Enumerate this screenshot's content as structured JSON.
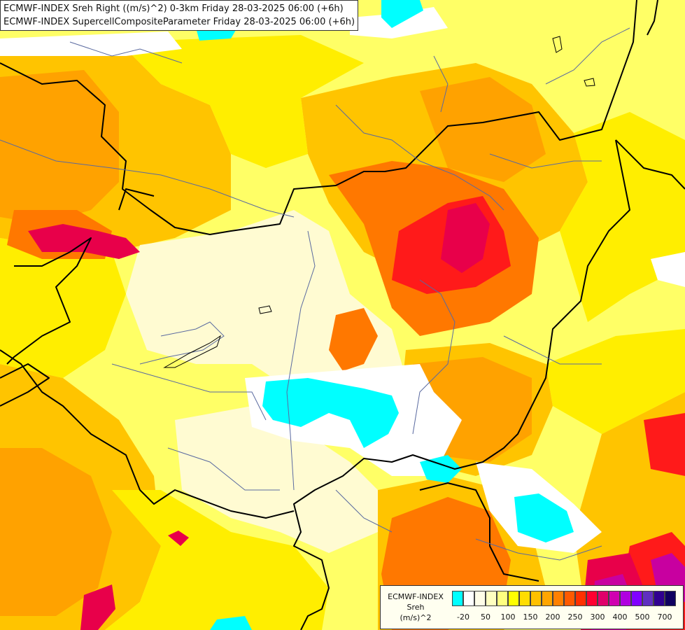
{
  "title": {
    "line1": "ECMWF-INDEX Sreh Right ((m/s)^2) 0-3km Friday 28-03-2025 06:00 (+6h)",
    "line2": "ECMWF-INDEX SupercellCompositeParameter Friday 28-03-2025 06:00 (+6h)"
  },
  "legend": {
    "name_line1": "ECMWF-INDEX",
    "name_line2": "Sreh",
    "name_line3": "(m/s)^2",
    "colors": [
      "#00ffff",
      "#ffffff",
      "#fffde8",
      "#ffffc0",
      "#ffff80",
      "#ffff00",
      "#ffdd00",
      "#ffc000",
      "#ffa500",
      "#ff8000",
      "#ff5a00",
      "#ff3000",
      "#ff0030",
      "#e0006a",
      "#d000b0",
      "#b000e0",
      "#8000ff",
      "#6030c0",
      "#300090",
      "#100060"
    ],
    "ticks": [
      "-20",
      "50",
      "100",
      "150",
      "200",
      "250",
      "300",
      "400",
      "500",
      "700"
    ]
  },
  "field_colors": {
    "cyan": "#00ffff",
    "white": "#ffffff",
    "pale": "#fffbd2",
    "light_yellow": "#ffff99",
    "yellow": "#ffee00",
    "gold": "#ffc400",
    "orange": "#ffa200",
    "dark_orange": "#ff7800",
    "red_orange": "#ff4a00",
    "red": "#ff1a1a",
    "crimson": "#e8004a",
    "magenta": "#c800a0",
    "purple": "#a000e0"
  }
}
